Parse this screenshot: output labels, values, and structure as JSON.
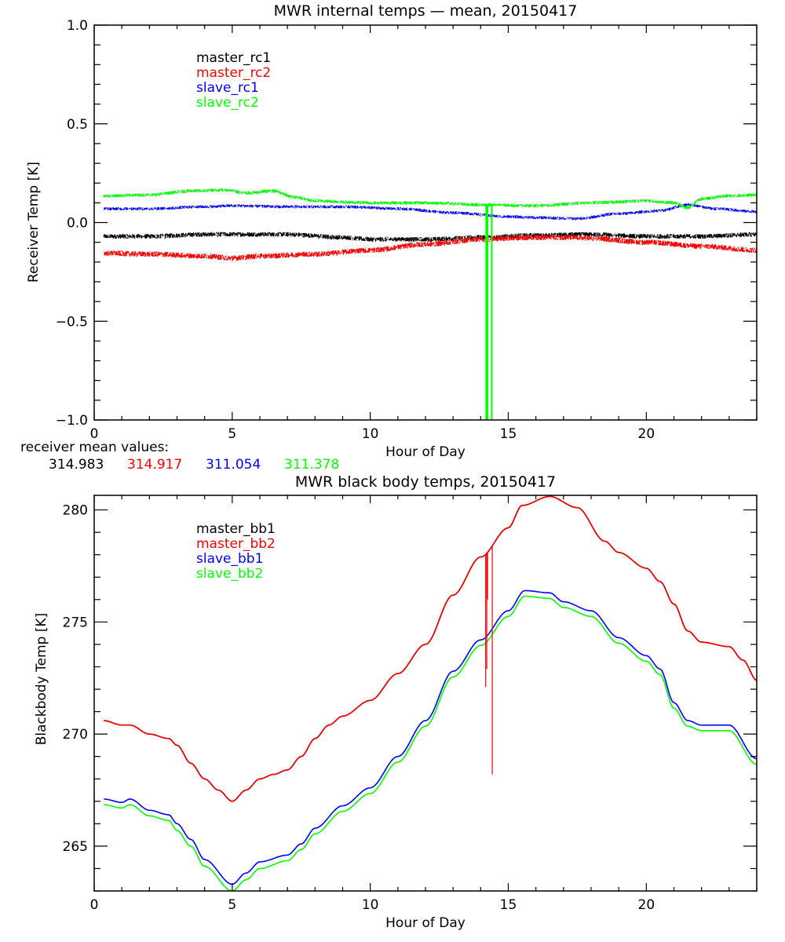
{
  "chart_data": [
    {
      "type": "line",
      "title": "MWR internal temps — mean, 20150417",
      "xlabel": "Hour of Day",
      "ylabel": "Receiver Temp [K]",
      "xlim": [
        0,
        24
      ],
      "ylim": [
        -1.0,
        1.0
      ],
      "xticks": [
        0,
        5,
        10,
        15,
        20
      ],
      "xtick_labels": [
        "0",
        "5",
        "10",
        "15",
        "20"
      ],
      "yticks": [
        -1.0,
        -0.5,
        0.0,
        0.5,
        1.0
      ],
      "ytick_labels": [
        "−1.0",
        "−0.5",
        "0.0",
        "0.5",
        "1.0"
      ],
      "grid": false,
      "legend_position": "top-left-inside",
      "noisy": true,
      "series": [
        {
          "name": "master_rc1",
          "color": "#000000",
          "noise": 0.012,
          "x": [
            0.35,
            2,
            4,
            5,
            7,
            9,
            10,
            12,
            14,
            16,
            18,
            20,
            22,
            24
          ],
          "y": [
            -0.07,
            -0.07,
            -0.06,
            -0.06,
            -0.06,
            -0.075,
            -0.085,
            -0.085,
            -0.075,
            -0.065,
            -0.06,
            -0.07,
            -0.07,
            -0.06
          ]
        },
        {
          "name": "master_rc2",
          "color": "#ff0000",
          "noise": 0.014,
          "x": [
            0.35,
            2,
            4,
            5,
            6,
            8,
            10,
            12,
            14,
            16,
            17,
            18,
            20,
            22,
            24
          ],
          "y": [
            -0.155,
            -0.16,
            -0.17,
            -0.18,
            -0.17,
            -0.16,
            -0.14,
            -0.11,
            -0.085,
            -0.075,
            -0.075,
            -0.08,
            -0.1,
            -0.12,
            -0.14
          ]
        },
        {
          "name": "slave_rc1",
          "color": "#0000ff",
          "noise": 0.008,
          "x": [
            0.35,
            2,
            4,
            5,
            7,
            9,
            11,
            13,
            15,
            16,
            17.5,
            19,
            20.5,
            21.5,
            22.5,
            24
          ],
          "y": [
            0.07,
            0.07,
            0.08,
            0.085,
            0.08,
            0.08,
            0.07,
            0.05,
            0.03,
            0.025,
            0.02,
            0.045,
            0.06,
            0.09,
            0.07,
            0.055
          ]
        },
        {
          "name": "slave_rc2",
          "color": "#00ff00",
          "noise": 0.009,
          "x": [
            0.35,
            2,
            3.5,
            4.8,
            5.5,
            6.5,
            7.2,
            8,
            10,
            12,
            14,
            16,
            18,
            20,
            21,
            21.5,
            22,
            23,
            24
          ],
          "y": [
            0.135,
            0.14,
            0.16,
            0.165,
            0.15,
            0.16,
            0.13,
            0.11,
            0.1,
            0.1,
            0.09,
            0.085,
            0.1,
            0.11,
            0.1,
            0.075,
            0.12,
            0.135,
            0.14
          ]
        }
      ],
      "spikes": [
        {
          "series": "slave_rc2",
          "x": 14.2,
          "y_to": -1.0
        },
        {
          "series": "slave_rc2",
          "x": 14.25,
          "y_to": -1.0
        },
        {
          "series": "slave_rc2",
          "x": 14.4,
          "y_to": -1.0
        }
      ],
      "annotation": {
        "label": "receiver mean values:",
        "values": [
          {
            "text": "314.983",
            "color": "#000000"
          },
          {
            "text": "314.917",
            "color": "#ff0000"
          },
          {
            "text": "311.054",
            "color": "#0000ff"
          },
          {
            "text": "311.378",
            "color": "#00ff00"
          }
        ]
      }
    },
    {
      "type": "line",
      "title": "MWR black body temps, 20150417",
      "xlabel": "Hour of Day",
      "ylabel": "Blackbody Temp [K]",
      "xlim": [
        0,
        24
      ],
      "ylim": [
        263.0,
        280.65
      ],
      "xticks": [
        0,
        5,
        10,
        15,
        20
      ],
      "xtick_labels": [
        "0",
        "5",
        "10",
        "15",
        "20"
      ],
      "yticks": [
        265,
        270,
        275,
        280
      ],
      "ytick_labels": [
        "265",
        "270",
        "275",
        "280"
      ],
      "grid": false,
      "legend_position": "top-left-inside",
      "noisy": false,
      "series": [
        {
          "name": "master_bb1",
          "color": "#000000",
          "x": [
            0.35,
            1,
            1.3,
            2,
            2.7,
            3,
            3.5,
            4,
            4.5,
            5,
            5.5,
            6,
            6.5,
            7,
            7.5,
            8,
            8.5,
            9,
            10,
            11,
            12,
            13,
            14,
            15,
            15.5,
            16.5,
            17.5,
            18.5,
            19,
            20,
            20.5,
            21,
            21.5,
            22,
            23,
            23.5,
            24
          ],
          "y": [
            270.6,
            270.4,
            270.4,
            270.0,
            269.8,
            269.5,
            268.7,
            268.0,
            267.5,
            267.0,
            267.5,
            268.0,
            268.2,
            268.4,
            269.0,
            269.8,
            270.4,
            270.8,
            271.5,
            272.7,
            274.0,
            276.2,
            277.9,
            279.2,
            280.2,
            280.6,
            280.1,
            278.6,
            278.1,
            277.4,
            276.8,
            275.8,
            274.6,
            274.1,
            273.9,
            273.3,
            272.4
          ]
        },
        {
          "name": "master_bb2",
          "color": "#ff0000",
          "x": [
            0.35,
            1,
            1.3,
            2,
            2.7,
            3,
            3.5,
            4,
            4.5,
            5,
            5.5,
            6,
            6.5,
            7,
            7.5,
            8,
            8.5,
            9,
            10,
            11,
            12,
            13,
            14,
            15,
            15.5,
            16.5,
            17.5,
            18.5,
            19,
            20,
            20.5,
            21,
            21.5,
            22,
            23,
            23.5,
            24
          ],
          "y": [
            270.6,
            270.4,
            270.4,
            270.0,
            269.8,
            269.5,
            268.7,
            268.0,
            267.5,
            267.0,
            267.5,
            268.0,
            268.2,
            268.4,
            269.0,
            269.8,
            270.4,
            270.8,
            271.5,
            272.7,
            274.0,
            276.2,
            277.9,
            279.2,
            280.2,
            280.6,
            280.1,
            278.6,
            278.1,
            277.4,
            276.8,
            275.8,
            274.6,
            274.1,
            273.9,
            273.3,
            272.4
          ]
        },
        {
          "name": "slave_bb1",
          "color": "#0000ff",
          "x": [
            0.35,
            1,
            1.3,
            2,
            2.7,
            3,
            3.5,
            4,
            5,
            5.5,
            6,
            7,
            7.5,
            8,
            9,
            10,
            11,
            12,
            13,
            14,
            15,
            15.6,
            16.5,
            17,
            18,
            19,
            20,
            20.5,
            21,
            21.5,
            22,
            23,
            24
          ],
          "y": [
            267.1,
            266.95,
            267.1,
            266.6,
            266.4,
            266.0,
            265.3,
            264.4,
            263.3,
            263.8,
            264.3,
            264.6,
            265.1,
            265.8,
            266.8,
            267.6,
            269.0,
            270.6,
            272.8,
            274.2,
            275.5,
            276.4,
            276.3,
            275.9,
            275.5,
            274.3,
            273.5,
            272.9,
            271.4,
            270.6,
            270.4,
            270.4,
            268.9
          ]
        },
        {
          "name": "slave_bb2",
          "color": "#00ff00",
          "x": [
            0.35,
            1,
            1.3,
            2,
            2.7,
            3,
            3.5,
            4,
            5,
            5.5,
            6,
            7,
            7.5,
            8,
            9,
            10,
            11,
            12,
            13,
            14,
            15,
            15.6,
            16.5,
            17,
            18,
            19,
            20,
            20.5,
            21,
            21.5,
            22,
            23,
            24
          ],
          "y": [
            266.85,
            266.7,
            266.85,
            266.35,
            266.15,
            265.7,
            265.0,
            264.1,
            263.0,
            263.5,
            264.0,
            264.35,
            264.85,
            265.55,
            266.55,
            267.35,
            268.75,
            270.35,
            272.55,
            273.95,
            275.25,
            276.15,
            276.05,
            275.65,
            275.25,
            274.05,
            273.25,
            272.65,
            271.15,
            270.35,
            270.15,
            270.15,
            268.65
          ]
        }
      ],
      "spikes": [
        {
          "series": "master_bb2",
          "x": 14.18,
          "y_to": 272.1
        },
        {
          "series": "master_bb2",
          "x": 14.22,
          "y_to": 272.9
        },
        {
          "series": "master_bb2",
          "x": 14.25,
          "y_to": 276.0
        },
        {
          "series": "master_bb2",
          "x": 14.42,
          "y_to": 268.2
        }
      ]
    }
  ]
}
